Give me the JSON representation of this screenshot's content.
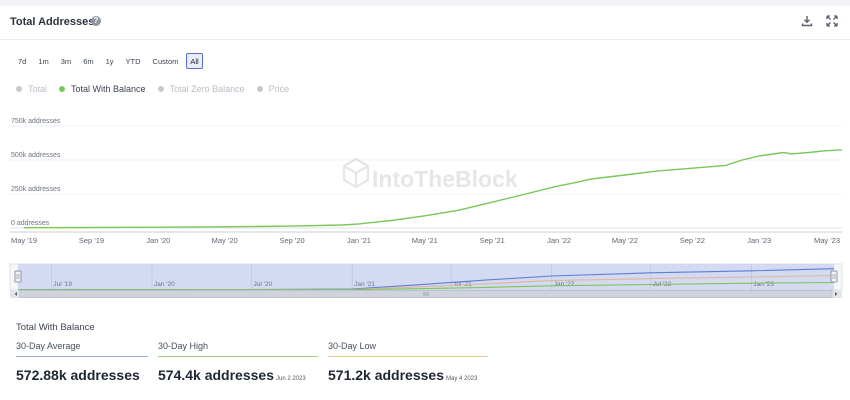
{
  "header": {
    "title": "Total Addresses",
    "help_glyph": "?"
  },
  "ranges": [
    {
      "label": "7d",
      "active": false
    },
    {
      "label": "1m",
      "active": false
    },
    {
      "label": "3m",
      "active": false
    },
    {
      "label": "6m",
      "active": false
    },
    {
      "label": "1y",
      "active": false
    },
    {
      "label": "YTD",
      "active": false
    },
    {
      "label": "Custom",
      "active": false
    },
    {
      "label": "All",
      "active": true
    }
  ],
  "legend": [
    {
      "label": "Total",
      "active": false,
      "color": "#c4c8cf"
    },
    {
      "label": "Total With Balance",
      "active": true,
      "color": "#7cc65a"
    },
    {
      "label": "Total Zero Balance",
      "active": false,
      "color": "#c4c8cf"
    },
    {
      "label": "Price",
      "active": false,
      "color": "#c4c8cf"
    }
  ],
  "watermark": "IntoTheBlock",
  "chart_data": {
    "type": "line",
    "title": "Total Addresses",
    "xlabel": "",
    "ylabel": "",
    "y_ticks": [
      {
        "value": 0,
        "label": "0 addresses"
      },
      {
        "value": 250000,
        "label": "250k addresses"
      },
      {
        "value": 500000,
        "label": "500k addresses"
      },
      {
        "value": 750000,
        "label": "750k addresses"
      }
    ],
    "ylim": [
      0,
      800000
    ],
    "xlim": [
      "2019-05-01",
      "2023-06-01"
    ],
    "x_ticks": [
      {
        "date": "2019-05-01",
        "label": "May '19"
      },
      {
        "date": "2019-09-01",
        "label": "Sep '19"
      },
      {
        "date": "2020-01-01",
        "label": "Jan '20"
      },
      {
        "date": "2020-05-01",
        "label": "May '20"
      },
      {
        "date": "2020-09-01",
        "label": "Sep '20"
      },
      {
        "date": "2021-01-01",
        "label": "Jan '21"
      },
      {
        "date": "2021-05-01",
        "label": "May '21"
      },
      {
        "date": "2021-09-01",
        "label": "Sep '21"
      },
      {
        "date": "2022-01-01",
        "label": "Jan '22"
      },
      {
        "date": "2022-05-01",
        "label": "May '22"
      },
      {
        "date": "2022-09-01",
        "label": "Sep '22"
      },
      {
        "date": "2023-01-01",
        "label": "Jan '23"
      },
      {
        "date": "2023-05-01",
        "label": "May '23"
      }
    ],
    "grid": true,
    "series": [
      {
        "name": "Total With Balance",
        "color": "#7cc65a",
        "points": [
          [
            "2019-05-01",
            2000
          ],
          [
            "2019-09-01",
            4000
          ],
          [
            "2020-01-01",
            6000
          ],
          [
            "2020-05-01",
            9000
          ],
          [
            "2020-09-01",
            14000
          ],
          [
            "2020-12-01",
            22000
          ],
          [
            "2021-01-01",
            30000
          ],
          [
            "2021-03-01",
            55000
          ],
          [
            "2021-05-01",
            90000
          ],
          [
            "2021-07-01",
            130000
          ],
          [
            "2021-09-01",
            190000
          ],
          [
            "2021-11-01",
            250000
          ],
          [
            "2021-12-15",
            295000
          ],
          [
            "2022-01-01",
            310000
          ],
          [
            "2022-02-01",
            335000
          ],
          [
            "2022-03-01",
            360000
          ],
          [
            "2022-05-01",
            390000
          ],
          [
            "2022-07-01",
            420000
          ],
          [
            "2022-09-01",
            440000
          ],
          [
            "2022-11-01",
            460000
          ],
          [
            "2022-12-01",
            500000
          ],
          [
            "2023-01-01",
            530000
          ],
          [
            "2023-02-15",
            555000
          ],
          [
            "2023-03-01",
            545000
          ],
          [
            "2023-04-01",
            555000
          ],
          [
            "2023-05-01",
            568000
          ],
          [
            "2023-06-01",
            575000
          ]
        ]
      }
    ],
    "navigator": {
      "x_ticks": [
        {
          "date": "2019-07-01",
          "label": "Jul '19"
        },
        {
          "date": "2020-01-01",
          "label": "Jan '20"
        },
        {
          "date": "2020-07-01",
          "label": "Jul '20"
        },
        {
          "date": "2021-01-01",
          "label": "Jan '21"
        },
        {
          "date": "2021-07-01",
          "label": "Jul '21"
        },
        {
          "date": "2022-01-01",
          "label": "Jan '22"
        },
        {
          "date": "2022-07-01",
          "label": "Jul '22"
        },
        {
          "date": "2023-01-01",
          "label": "Jan '23"
        }
      ],
      "selection": [
        "2019-05-01",
        "2023-06-01"
      ],
      "series": [
        {
          "color": "#5b7fd6",
          "points": [
            [
              "2019-05-01",
              0.01
            ],
            [
              "2020-07-01",
              0.02
            ],
            [
              "2021-01-01",
              0.04
            ],
            [
              "2021-05-01",
              0.2
            ],
            [
              "2021-09-01",
              0.38
            ],
            [
              "2022-01-01",
              0.54
            ],
            [
              "2022-07-01",
              0.66
            ],
            [
              "2023-01-01",
              0.74
            ],
            [
              "2023-06-01",
              0.82
            ]
          ]
        },
        {
          "color": "#e0b89a",
          "points": [
            [
              "2019-05-01",
              0.005
            ],
            [
              "2021-01-01",
              0.02
            ],
            [
              "2021-05-01",
              0.12
            ],
            [
              "2021-09-01",
              0.24
            ],
            [
              "2022-01-01",
              0.36
            ],
            [
              "2022-07-01",
              0.44
            ],
            [
              "2023-01-01",
              0.5
            ],
            [
              "2023-06-01",
              0.56
            ]
          ]
        },
        {
          "color": "#7cc65a",
          "points": [
            [
              "2019-05-01",
              0.003
            ],
            [
              "2021-01-01",
              0.01
            ],
            [
              "2021-05-01",
              0.05
            ],
            [
              "2021-09-01",
              0.1
            ],
            [
              "2022-01-01",
              0.16
            ],
            [
              "2022-07-01",
              0.21
            ],
            [
              "2023-01-01",
              0.26
            ],
            [
              "2023-06-01",
              0.29
            ]
          ]
        }
      ]
    }
  },
  "stats": {
    "title": "Total With Balance",
    "items": [
      {
        "label": "30-Day Average",
        "value": "572.88k addresses",
        "date": "",
        "color": "#8fb3dc"
      },
      {
        "label": "30-Day High",
        "value": "574.4k addresses",
        "date": "Jun 2 2023",
        "color": "#9fd283"
      },
      {
        "label": "30-Day Low",
        "value": "571.2k addresses",
        "date": "May 4 2023",
        "color": "#f1cf8c"
      }
    ]
  }
}
